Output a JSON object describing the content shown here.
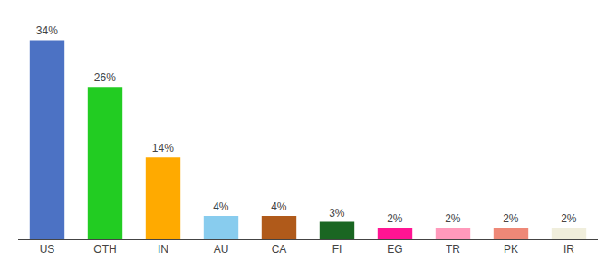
{
  "chart_data": {
    "type": "bar",
    "categories": [
      "US",
      "OTH",
      "IN",
      "AU",
      "CA",
      "FI",
      "EG",
      "TR",
      "PK",
      "IR"
    ],
    "values": [
      34,
      26,
      14,
      4,
      4,
      3,
      2,
      2,
      2,
      2
    ],
    "value_labels": [
      "34%",
      "26%",
      "14%",
      "4%",
      "4%",
      "3%",
      "2%",
      "2%",
      "2%",
      "2%"
    ],
    "colors": [
      "#4c72c4",
      "#22cc22",
      "#ffaa00",
      "#88ccee",
      "#b05a1a",
      "#1a6622",
      "#ff1493",
      "#ff99bb",
      "#ee8877",
      "#f0eedc"
    ],
    "ylim": [
      0,
      37
    ],
    "data_labels": true,
    "tick_labels": "x",
    "grid": false
  }
}
